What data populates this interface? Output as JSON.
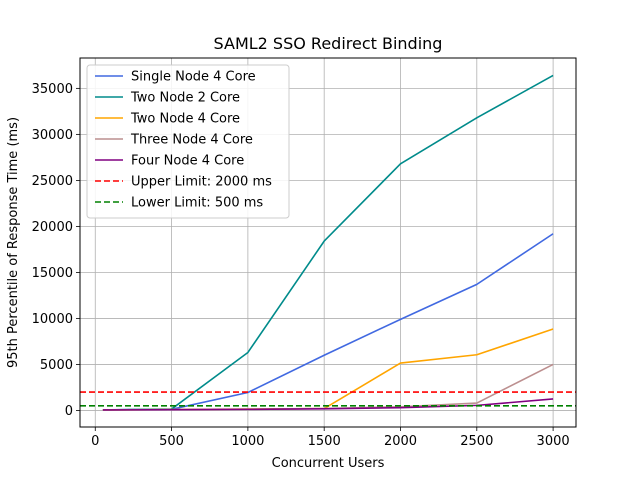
{
  "chart_data": {
    "type": "line",
    "title": "SAML2 SSO Redirect Binding",
    "xlabel": "Concurrent Users",
    "ylabel": "95th Percentile of Response Time (ms)",
    "xlim": [
      -100,
      3150
    ],
    "ylim": [
      -1800,
      38300
    ],
    "xticks": [
      0,
      500,
      1000,
      1500,
      2000,
      2500,
      3000
    ],
    "yticks": [
      0,
      5000,
      10000,
      15000,
      20000,
      25000,
      30000,
      35000
    ],
    "grid": true,
    "legend_position": "top-left",
    "series": [
      {
        "name": "Single Node 4 Core",
        "color": "#4169e1",
        "dash": "solid",
        "x": [
          50,
          500,
          1000,
          1500,
          2000,
          2500,
          3000
        ],
        "y": [
          60,
          120,
          1950,
          6000,
          9900,
          13700,
          19200
        ]
      },
      {
        "name": "Two Node 2 Core",
        "color": "#008b8b",
        "dash": "solid",
        "x": [
          50,
          500,
          1000,
          1500,
          2000,
          2500,
          3000
        ],
        "y": [
          60,
          150,
          6300,
          18400,
          26800,
          31800,
          36400
        ]
      },
      {
        "name": "Two Node 4 Core",
        "color": "#ffa500",
        "dash": "solid",
        "x": [
          50,
          500,
          1000,
          1500,
          2000,
          2500,
          3000
        ],
        "y": [
          50,
          100,
          150,
          200,
          5150,
          6050,
          8850
        ]
      },
      {
        "name": "Three Node 4 Core",
        "color": "#bc8f8f",
        "dash": "solid",
        "x": [
          50,
          500,
          1000,
          1500,
          2000,
          2500,
          3000
        ],
        "y": [
          50,
          80,
          130,
          200,
          400,
          800,
          5000
        ]
      },
      {
        "name": "Four Node 4 Core",
        "color": "#800080",
        "dash": "solid",
        "x": [
          50,
          500,
          1000,
          1500,
          2000,
          2500,
          3000
        ],
        "y": [
          50,
          80,
          120,
          180,
          300,
          550,
          1250
        ]
      },
      {
        "name": "Upper Limit: 2000 ms",
        "color": "#ff0000",
        "dash": "dashed",
        "hline": 2000
      },
      {
        "name": "Lower Limit: 500 ms",
        "color": "#008000",
        "dash": "dashed",
        "hline": 500
      }
    ]
  }
}
